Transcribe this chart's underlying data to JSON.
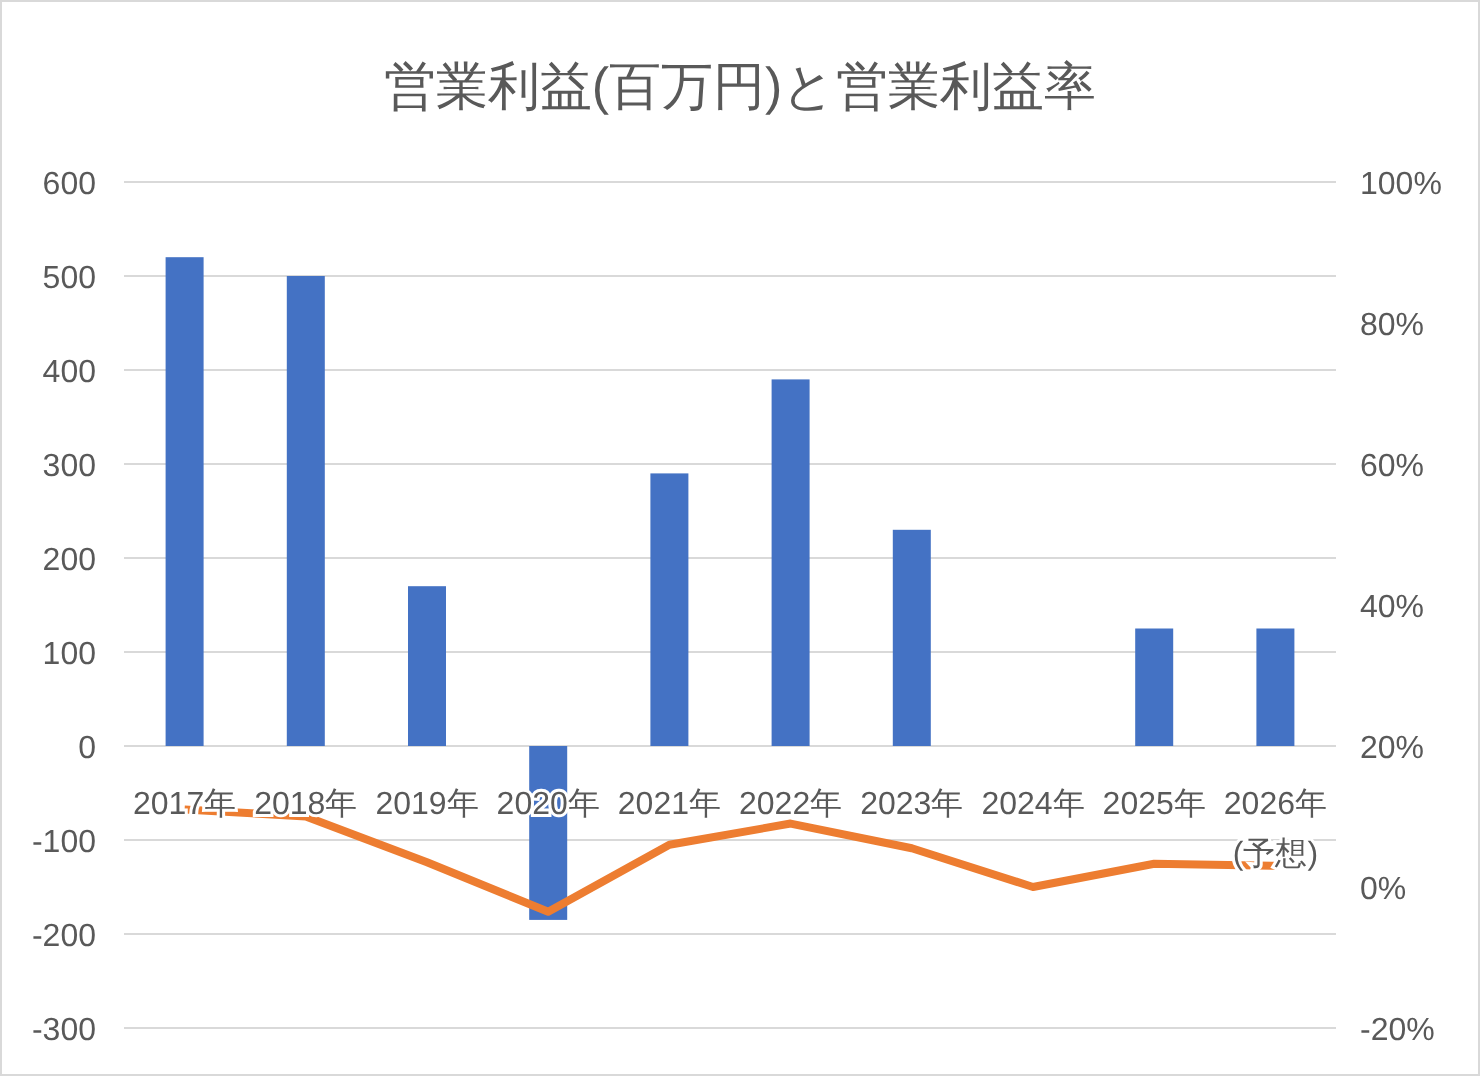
{
  "chart_data": {
    "type": "bar",
    "title": "営業利益(百万円)と営業利益率",
    "categories": [
      "2017年",
      "2018年",
      "2019年",
      "2020年",
      "2021年",
      "2022年",
      "2023年",
      "2024年",
      "2025年",
      "2026年\n(予想)"
    ],
    "series": [
      {
        "color": "#4472c4",
        "values": [
          520,
          500,
          170,
          -185,
          290,
          390,
          230,
          null,
          125,
          125
        ]
      },
      {
        "type": "line",
        "axis": "y2",
        "color": "#ed7d31",
        "marker": "none",
        "values": [
          11,
          10,
          3.5,
          -3.5,
          6,
          9,
          5.5,
          0,
          3.3,
          3
        ]
      }
    ],
    "ylim": [
      -300,
      600
    ],
    "yticks": [
      -300,
      -200,
      -100,
      0,
      100,
      200,
      300,
      400,
      500,
      600
    ],
    "y2lim": [
      -20,
      100
    ],
    "y2ticks": [
      {
        "value": -20,
        "label": "-20%"
      },
      {
        "value": 0,
        "label": "0%"
      },
      {
        "value": 20,
        "label": "20%"
      },
      {
        "value": 40,
        "label": "40%"
      },
      {
        "value": 60,
        "label": "60%"
      },
      {
        "value": 80,
        "label": "80%"
      },
      {
        "value": 100,
        "label": "100%"
      }
    ],
    "grid": "y"
  }
}
